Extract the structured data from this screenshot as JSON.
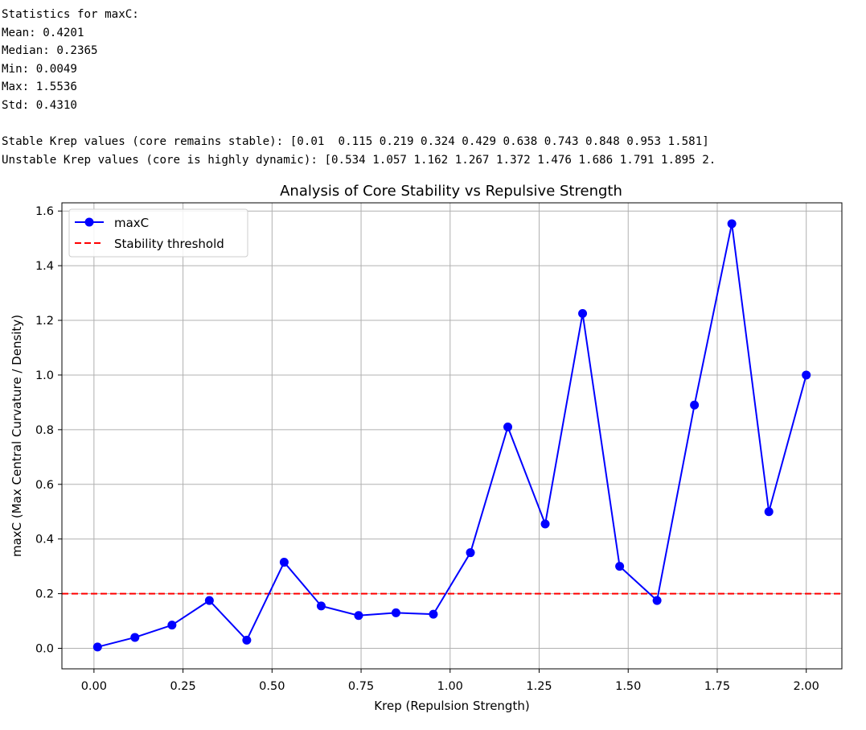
{
  "output": {
    "lines": [
      "Statistics for maxC:",
      "Mean: 0.4201",
      "Median: 0.2365",
      "Min: 0.0049",
      "Max: 1.5536",
      "Std: 0.4310",
      "",
      "Stable Krep values (core remains stable): [0.01  0.115 0.219 0.324 0.429 0.638 0.743 0.848 0.953 1.581]",
      "Unstable Krep values (core is highly dynamic): [0.534 1.057 1.162 1.267 1.372 1.476 1.686 1.791 1.895 2."
    ]
  },
  "chart_data": {
    "type": "line",
    "title": "Analysis of Core Stability vs Repulsive Strength",
    "xlabel": "Krep (Repulsion Strength)",
    "ylabel": "maxC (Max Central Curvature / Density)",
    "xlim": [
      -0.09,
      2.1
    ],
    "ylim": [
      -0.075,
      1.63
    ],
    "xticks": [
      0.0,
      0.25,
      0.5,
      0.75,
      1.0,
      1.25,
      1.5,
      1.75,
      2.0
    ],
    "xtick_labels": [
      "0.00",
      "0.25",
      "0.50",
      "0.75",
      "1.00",
      "1.25",
      "1.50",
      "1.75",
      "2.00"
    ],
    "yticks": [
      0.0,
      0.2,
      0.4,
      0.6,
      0.8,
      1.0,
      1.2,
      1.4,
      1.6
    ],
    "ytick_labels": [
      "0.0",
      "0.2",
      "0.4",
      "0.6",
      "0.8",
      "1.0",
      "1.2",
      "1.4",
      "1.6"
    ],
    "grid": true,
    "legend": "top-left",
    "series": [
      {
        "name": "maxC",
        "color": "#0000ff",
        "marker": "circle",
        "x": [
          0.01,
          0.115,
          0.219,
          0.324,
          0.429,
          0.534,
          0.638,
          0.743,
          0.848,
          0.953,
          1.057,
          1.162,
          1.267,
          1.372,
          1.476,
          1.581,
          1.686,
          1.791,
          1.895,
          2.0
        ],
        "y": [
          0.005,
          0.04,
          0.085,
          0.175,
          0.03,
          0.315,
          0.155,
          0.12,
          0.13,
          0.125,
          0.35,
          0.81,
          0.455,
          1.225,
          0.3,
          0.175,
          0.89,
          1.5536,
          0.5,
          1.0
        ]
      }
    ],
    "threshold": {
      "name": "Stability threshold",
      "y": 0.2,
      "color": "#ff0000",
      "style": "dashed"
    }
  }
}
